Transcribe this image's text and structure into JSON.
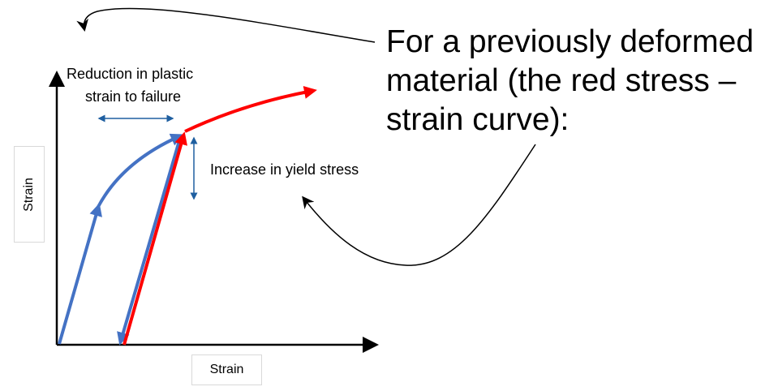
{
  "title_lines": [
    "For a previously deformed",
    "material (the red stress –",
    "strain curve):"
  ],
  "annotations": {
    "reduction": [
      "Reduction in plastic",
      "strain to failure"
    ],
    "increase": "Increase in yield stress"
  },
  "axes": {
    "y_label": "Strain",
    "x_label": "Strain"
  },
  "colors": {
    "original_curve": "#4472c4",
    "deformed_curve": "#ff0000",
    "dimension_arrows": "#1f5fa0",
    "pointer_arrows": "#000000"
  }
}
